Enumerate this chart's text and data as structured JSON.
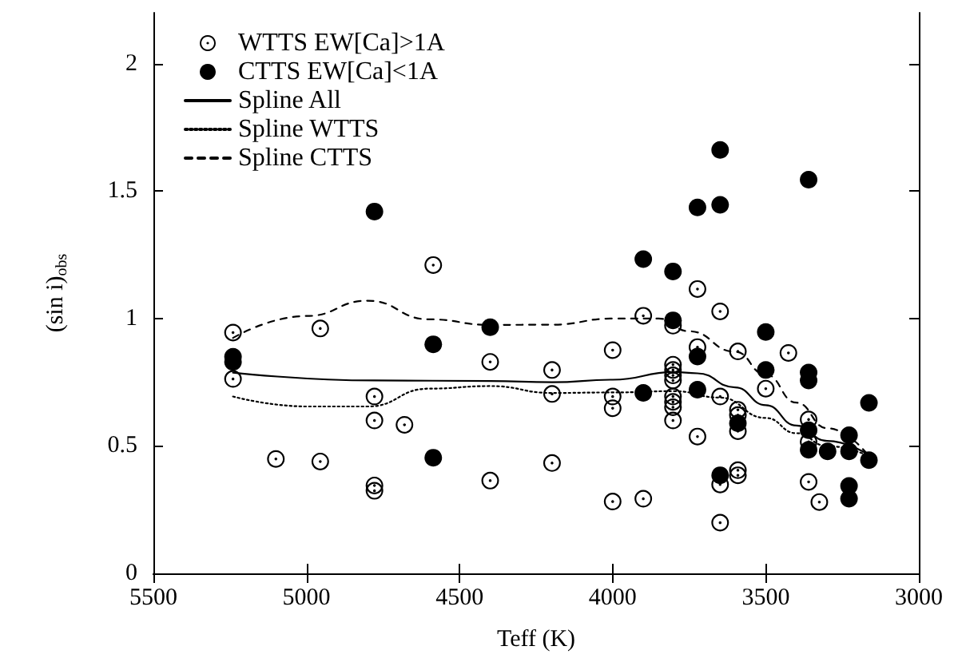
{
  "chart_data": {
    "type": "scatter",
    "xlabel": "Teff (K)",
    "ylabel": "(sin i)$_{obs}$",
    "xlim": [
      5500,
      3000
    ],
    "xticks": [
      5500,
      5000,
      4500,
      4000,
      3500,
      3000
    ],
    "ylim": [
      0,
      2.2
    ],
    "yticks": [
      0,
      0.5,
      1,
      1.5,
      2
    ],
    "grid": false,
    "legend": "top left",
    "series": [
      {
        "name": "WTTS EW[Ca]>1A",
        "marker": "circle",
        "color": "#000000",
        "x": [
          5240,
          5240,
          5100,
          4955,
          4955,
          4778,
          4778,
          4778,
          4778,
          4680,
          4586,
          4400,
          4400,
          4198,
          4198,
          4198,
          4000,
          4000,
          4000,
          4000,
          3900,
          3900,
          3803,
          3803,
          3803,
          3803,
          3803,
          3803,
          3803,
          3803,
          3803,
          3723,
          3723,
          3723,
          3649,
          3649,
          3649,
          3649,
          3591,
          3591,
          3591,
          3591,
          3591,
          3591,
          3500,
          3426,
          3360,
          3360,
          3360,
          3325
        ],
        "values": [
          0.945,
          0.763,
          0.449,
          0.961,
          0.439,
          0.694,
          0.6,
          0.345,
          0.324,
          0.583,
          1.21,
          0.83,
          0.364,
          0.798,
          0.704,
          0.433,
          0.876,
          0.694,
          0.648,
          0.282,
          1.011,
          0.293,
          0.972,
          0.819,
          0.798,
          0.777,
          0.757,
          0.694,
          0.673,
          0.652,
          0.6,
          1.116,
          0.888,
          0.537,
          1.028,
          0.694,
          0.349,
          0.199,
          0.871,
          0.642,
          0.621,
          0.558,
          0.405,
          0.385,
          0.725,
          0.865,
          0.604,
          0.516,
          0.359,
          0.28
        ]
      },
      {
        "name": "CTTS EW[Ca]<1A",
        "marker": "circle",
        "color": "#000000",
        "x": [
          5240,
          5240,
          4778,
          4586,
          4586,
          4400,
          3900,
          3900,
          3803,
          3803,
          3723,
          3723,
          3723,
          3649,
          3649,
          3649,
          3591,
          3500,
          3500,
          3360,
          3360,
          3360,
          3360,
          3360,
          3298,
          3228,
          3228,
          3228,
          3228,
          3163,
          3163
        ],
        "values": [
          0.85,
          0.83,
          1.42,
          0.899,
          0.454,
          0.966,
          1.233,
          0.708,
          1.185,
          0.993,
          1.436,
          0.851,
          0.721,
          1.662,
          1.446,
          0.385,
          0.589,
          0.947,
          0.798,
          1.545,
          0.788,
          0.757,
          0.562,
          0.485,
          0.479,
          0.542,
          0.479,
          0.343,
          0.293,
          0.669,
          0.444
        ]
      },
      {
        "name": "Spline All",
        "type": "line",
        "marker": "none",
        "line_style": "solid",
        "color": "#000000",
        "x": [
          5240,
          4778,
          4400,
          4198,
          4000,
          3800,
          3723,
          3600,
          3500,
          3400,
          3300,
          3163
        ],
        "values": [
          0.788,
          0.757,
          0.755,
          0.75,
          0.76,
          0.79,
          0.785,
          0.73,
          0.66,
          0.58,
          0.52,
          0.464
        ]
      },
      {
        "name": "Spline WTTS",
        "type": "line",
        "marker": "none",
        "line_style": "dotted",
        "color": "#000000",
        "x": [
          5240,
          5000,
          4800,
          4600,
          4400,
          4198,
          4000,
          3800,
          3650,
          3500,
          3400,
          3300,
          3163
        ],
        "values": [
          0.694,
          0.655,
          0.655,
          0.725,
          0.735,
          0.708,
          0.71,
          0.715,
          0.69,
          0.61,
          0.55,
          0.5,
          0.46
        ]
      },
      {
        "name": "Spline CTTS",
        "type": "line",
        "marker": "none",
        "line_style": "dashed",
        "color": "#000000",
        "x": [
          5240,
          5000,
          4800,
          4600,
          4400,
          4198,
          4000,
          3850,
          3750,
          3600,
          3500,
          3400,
          3300,
          3163
        ],
        "values": [
          0.924,
          1.01,
          1.07,
          0.997,
          0.975,
          0.976,
          1.0,
          1.0,
          0.95,
          0.87,
          0.78,
          0.67,
          0.57,
          0.46
        ]
      }
    ]
  }
}
